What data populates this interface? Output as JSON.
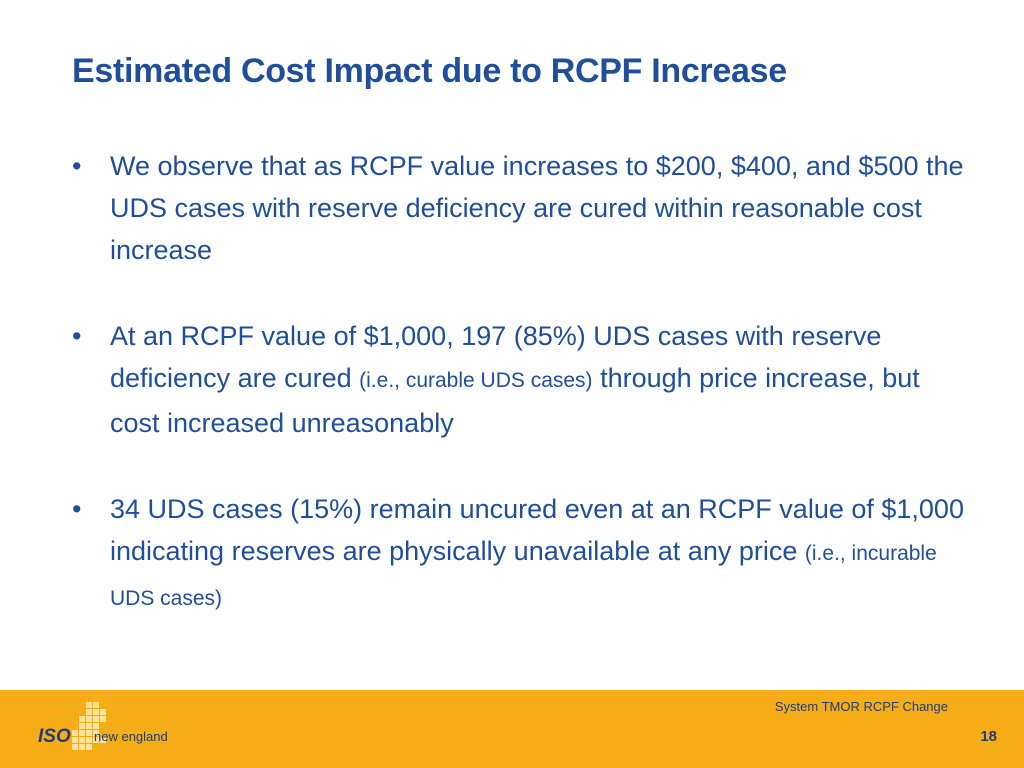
{
  "title": "Estimated Cost Impact due to RCPF Increase",
  "bullets": [
    {
      "marker": "•",
      "text": "We observe that as RCPF value increases to $200, $400, and $500 the UDS cases with reserve deficiency are cured within reasonable cost increase"
    },
    {
      "marker": "•",
      "text_a": "At an RCPF value of $1,000, 197 (85%) UDS cases with reserve deficiency are cured ",
      "note": "(i.e., curable UDS cases)",
      "text_b": " through price increase, but cost increased unreasonably"
    },
    {
      "marker": "•",
      "text_a": "34 UDS cases (15%) remain uncured even at an RCPF value of $1,000 indicating reserves are physically unavailable at any price ",
      "note": "(i.e., incurable UDS cases)"
    }
  ],
  "footer": {
    "caption": "System TMOR RCPF Change",
    "page_number": "18"
  },
  "logo": {
    "iso": "ISO",
    "region": "new england",
    "icon": "new-england-map-icon"
  },
  "colors": {
    "title": "#1f4e9c",
    "footer_bar": "#f5ac17",
    "footer_text": "#1f3f7a"
  }
}
